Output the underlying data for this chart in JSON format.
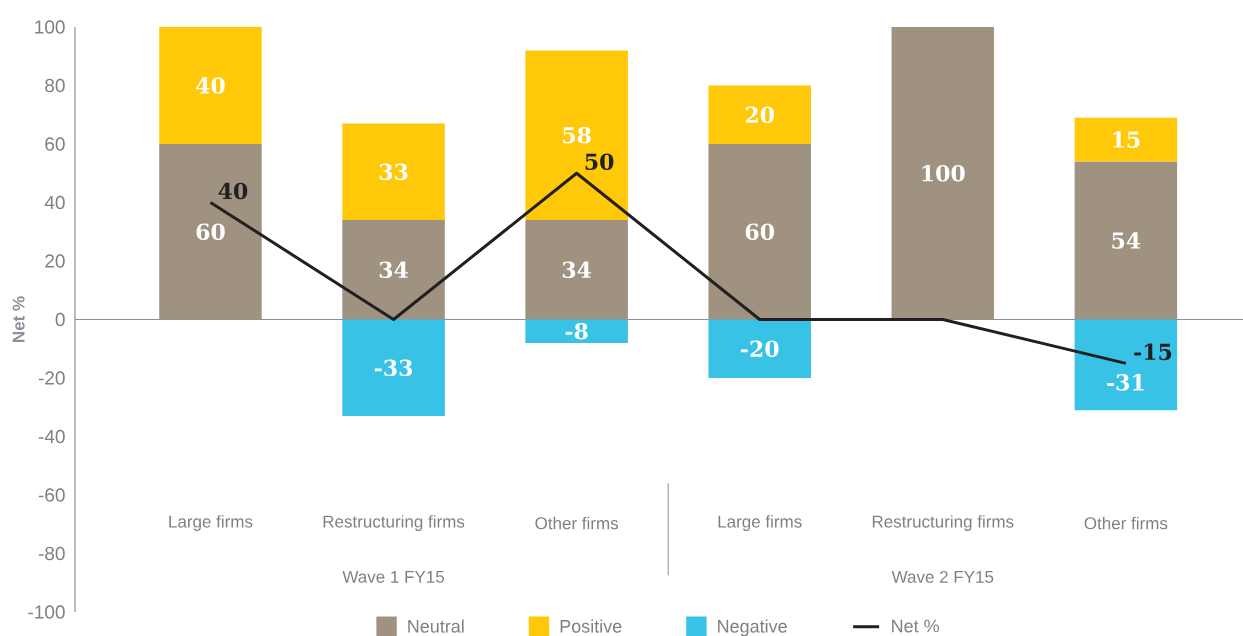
{
  "chart_data": {
    "type": "bar",
    "stacked": true,
    "ylabel": "Net %",
    "categories": [
      "Large firms",
      "Restructuring firms",
      "Other firms",
      "Large firms",
      "Restructuring firms",
      "Other firms"
    ],
    "series": [
      {
        "name": "Neutral",
        "color": "#a09281",
        "values": [
          60,
          34,
          34,
          60,
          100,
          54
        ],
        "value_labels": [
          "60",
          "34",
          "34",
          "60",
          "100",
          "54"
        ]
      },
      {
        "name": "Positive",
        "color": "#ffc90a",
        "values": [
          40,
          33,
          58,
          20,
          null,
          15
        ],
        "value_labels": [
          "40",
          "33",
          "58",
          "20",
          null,
          "15"
        ]
      },
      {
        "name": "Negative",
        "color": "#38c3e6",
        "values": [
          null,
          -33,
          -8,
          -20,
          null,
          -31
        ],
        "value_labels": [
          null,
          "-33",
          "-8",
          "-20",
          null,
          "-31"
        ]
      },
      {
        "name": "Net %",
        "type": "line",
        "color": "#231f20",
        "values": [
          40,
          0,
          50,
          0,
          0,
          -15
        ],
        "value_labels": [
          "40",
          null,
          "50",
          null,
          null,
          "-15"
        ]
      }
    ],
    "ylim": [
      -100,
      100
    ],
    "yticks": [
      -100,
      -80,
      -60,
      -40,
      -20,
      0,
      20,
      40,
      60,
      80,
      100
    ],
    "annotations": [
      "Wave 1 FY15",
      "Wave 2 FY15"
    ],
    "legend": "bottom"
  }
}
